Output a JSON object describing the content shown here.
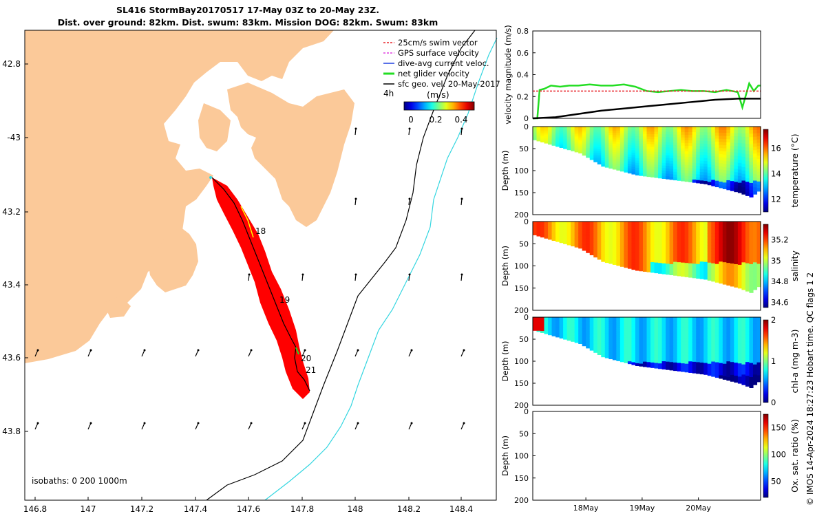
{
  "header": {
    "title_line1": "SL416 StormBay20170517 17-May 03Z to 20-May 23Z.",
    "title_line2": "Dist. over ground: 82km. Dist. swum: 83km. Mission DOG: 82km. Swum: 83km"
  },
  "credit": "© IMOS 14-Apr-2024 18:27:23 Hobart time. QC flags 1  2",
  "map": {
    "lon_ticks": [
      "146.8",
      "147",
      "147.2",
      "147.4",
      "147.6",
      "147.8",
      "148",
      "148.2",
      "148.4"
    ],
    "lat_ticks": [
      "42.8",
      "-43",
      "43.2",
      "43.4",
      "43.6",
      "43.8"
    ],
    "day_labels": [
      "18",
      "19",
      "20",
      "21"
    ],
    "isobaths_text": "isobaths: 0   200  1000m",
    "legend": [
      {
        "label": "25cm/s swim vector",
        "color": "#e8242a"
      },
      {
        "label": "GPS surface velocity",
        "color": "#e040e0"
      },
      {
        "label": "dive-avg current veloc.",
        "color": "#2040e0"
      },
      {
        "label": "net glider velocity",
        "color": "#22dd22"
      },
      {
        "label": "sfc geo. vel. 20-May-2017",
        "color": "#000000"
      }
    ],
    "legend_4h": "4h",
    "colorbar_unit": "(m/s)",
    "colorbar_ticks": [
      "0",
      "0.2",
      "0.4"
    ],
    "colors": {
      "land": "#fbc999",
      "track": "#ff0000",
      "isobath200": "#000000",
      "isobath1000": "#33d6e0"
    }
  },
  "chart_data": [
    {
      "type": "line",
      "title": "",
      "ylabel": "velocity magnitude (m/s)",
      "ylim": [
        0,
        0.8
      ],
      "y_ticks": [
        "0",
        "0.2",
        "0.4",
        "0.6",
        "0.8"
      ],
      "series": [
        {
          "name": "net glider velocity",
          "color": "#22dd22",
          "x": [
            0,
            0.02,
            0.03,
            0.05,
            0.08,
            0.12,
            0.16,
            0.2,
            0.25,
            0.3,
            0.35,
            0.4,
            0.45,
            0.5,
            0.55,
            0.6,
            0.65,
            0.7,
            0.75,
            0.8,
            0.85,
            0.9,
            0.92,
            0.95,
            0.97,
            0.99,
            1.0
          ],
          "values": [
            0,
            0,
            0.26,
            0.27,
            0.3,
            0.29,
            0.3,
            0.3,
            0.31,
            0.3,
            0.3,
            0.31,
            0.29,
            0.25,
            0.24,
            0.25,
            0.26,
            0.25,
            0.25,
            0.24,
            0.26,
            0.24,
            0.1,
            0.32,
            0.25,
            0.3,
            0.3
          ]
        },
        {
          "name": "25cm/s swim vector",
          "color": "#e8242a",
          "x": [
            0,
            1
          ],
          "values": [
            0.25,
            0.25
          ]
        },
        {
          "name": "sfc geo. vel. 20-May-2017",
          "color": "#000000",
          "x": [
            0,
            0.1,
            0.2,
            0.3,
            0.4,
            0.5,
            0.6,
            0.7,
            0.8,
            0.9,
            1.0
          ],
          "values": [
            0,
            0.01,
            0.04,
            0.07,
            0.09,
            0.11,
            0.13,
            0.15,
            0.17,
            0.18,
            0.18
          ]
        }
      ]
    },
    {
      "type": "heatmap",
      "ylabel": "Depth (m)",
      "y_ticks": [
        "0",
        "50",
        "100",
        "150",
        "200"
      ],
      "colorbar_label": "temperature (°C)",
      "colorbar_ticks": [
        "12",
        "14",
        "16"
      ],
      "colorbar_range": [
        11,
        17.5
      ],
      "bottom_depth": {
        "x": [
          0,
          0.1,
          0.2,
          0.3,
          0.45,
          0.6,
          0.75,
          0.9,
          0.95,
          1.0
        ],
        "values": [
          30,
          45,
          60,
          90,
          110,
          120,
          130,
          150,
          160,
          140
        ]
      },
      "depth_max": 200
    },
    {
      "type": "heatmap",
      "ylabel": "Depth (m)",
      "y_ticks": [
        "0",
        "50",
        "100",
        "150",
        "200"
      ],
      "colorbar_label": "salinity",
      "colorbar_ticks": [
        "34.6",
        "34.8",
        "35",
        "35.2"
      ],
      "colorbar_range": [
        34.55,
        35.35
      ],
      "depth_max": 200
    },
    {
      "type": "heatmap",
      "ylabel": "Depth (m)",
      "y_ticks": [
        "0",
        "50",
        "100",
        "150",
        "200"
      ],
      "colorbar_label": "chl-a (mg m-3)",
      "colorbar_ticks": [
        "0",
        "1",
        "2"
      ],
      "colorbar_range": [
        0,
        2
      ],
      "depth_max": 200
    },
    {
      "type": "heatmap",
      "ylabel": "Depth (m)",
      "y_ticks": [
        "0",
        "50",
        "100",
        "150",
        "200"
      ],
      "colorbar_label": "Ox. sat. ratio (%)",
      "colorbar_ticks": [
        "50",
        "100",
        "150"
      ],
      "colorbar_range": [
        20,
        175
      ],
      "depth_max": 200,
      "x_ticks": [
        "18May",
        "19May",
        "20May"
      ]
    }
  ]
}
